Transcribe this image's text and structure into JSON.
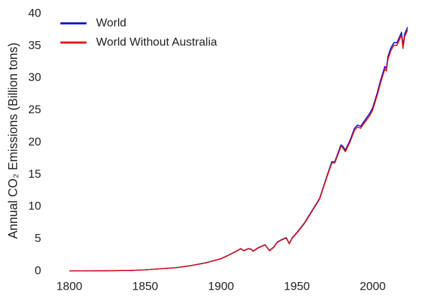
{
  "chart_data": {
    "type": "line",
    "y_label": "Annual CO₂ Emissions (Billion tons)",
    "x": [
      1800,
      1810,
      1820,
      1830,
      1840,
      1850,
      1860,
      1870,
      1880,
      1890,
      1900,
      1905,
      1910,
      1913,
      1915,
      1918,
      1920,
      1921,
      1925,
      1929,
      1932,
      1935,
      1937,
      1940,
      1943,
      1945,
      1947,
      1950,
      1955,
      1960,
      1965,
      1970,
      1973,
      1975,
      1979,
      1980,
      1982,
      1985,
      1988,
      1990,
      1992,
      1995,
      1998,
      2000,
      2003,
      2005,
      2008,
      2009,
      2010,
      2012,
      2014,
      2016,
      2019,
      2020,
      2021,
      2023
    ],
    "series": [
      {
        "name": "World",
        "color": "#0a0ad8",
        "values": [
          0.03,
          0.04,
          0.05,
          0.07,
          0.1,
          0.2,
          0.36,
          0.53,
          0.85,
          1.3,
          1.95,
          2.5,
          3.1,
          3.5,
          3.2,
          3.5,
          3.4,
          3.1,
          3.7,
          4.1,
          3.2,
          3.8,
          4.5,
          4.9,
          5.2,
          4.3,
          5.2,
          6.0,
          7.5,
          9.4,
          11.3,
          14.9,
          17.0,
          17.0,
          19.6,
          19.5,
          18.8,
          20.3,
          22.2,
          22.7,
          22.5,
          23.5,
          24.5,
          25.4,
          27.7,
          29.5,
          31.8,
          31.5,
          33.3,
          34.7,
          35.5,
          35.5,
          37.1,
          35.0,
          36.8,
          37.9
        ]
      },
      {
        "name": "World Without Australia",
        "color": "#dd1111",
        "values": [
          0.03,
          0.04,
          0.05,
          0.07,
          0.1,
          0.2,
          0.36,
          0.52,
          0.84,
          1.28,
          1.92,
          2.47,
          3.07,
          3.46,
          3.16,
          3.46,
          3.36,
          3.06,
          3.66,
          4.06,
          3.16,
          3.75,
          4.45,
          4.85,
          5.14,
          4.24,
          5.13,
          5.92,
          7.4,
          9.3,
          11.2,
          14.75,
          16.8,
          16.8,
          19.35,
          19.25,
          18.55,
          20.05,
          21.9,
          22.4,
          22.2,
          23.2,
          24.15,
          25.05,
          27.35,
          29.1,
          31.4,
          31.1,
          32.9,
          34.3,
          35.1,
          35.1,
          36.7,
          34.6,
          36.4,
          37.5
        ]
      }
    ],
    "xlim": [
      1790,
      2033
    ],
    "ylim": [
      0,
      40
    ],
    "xticks": [
      1800,
      1850,
      1900,
      1950,
      2000
    ],
    "yticks": [
      0,
      5,
      10,
      15,
      20,
      25,
      30,
      35,
      40
    ],
    "grid": false,
    "legend": "upper left"
  }
}
